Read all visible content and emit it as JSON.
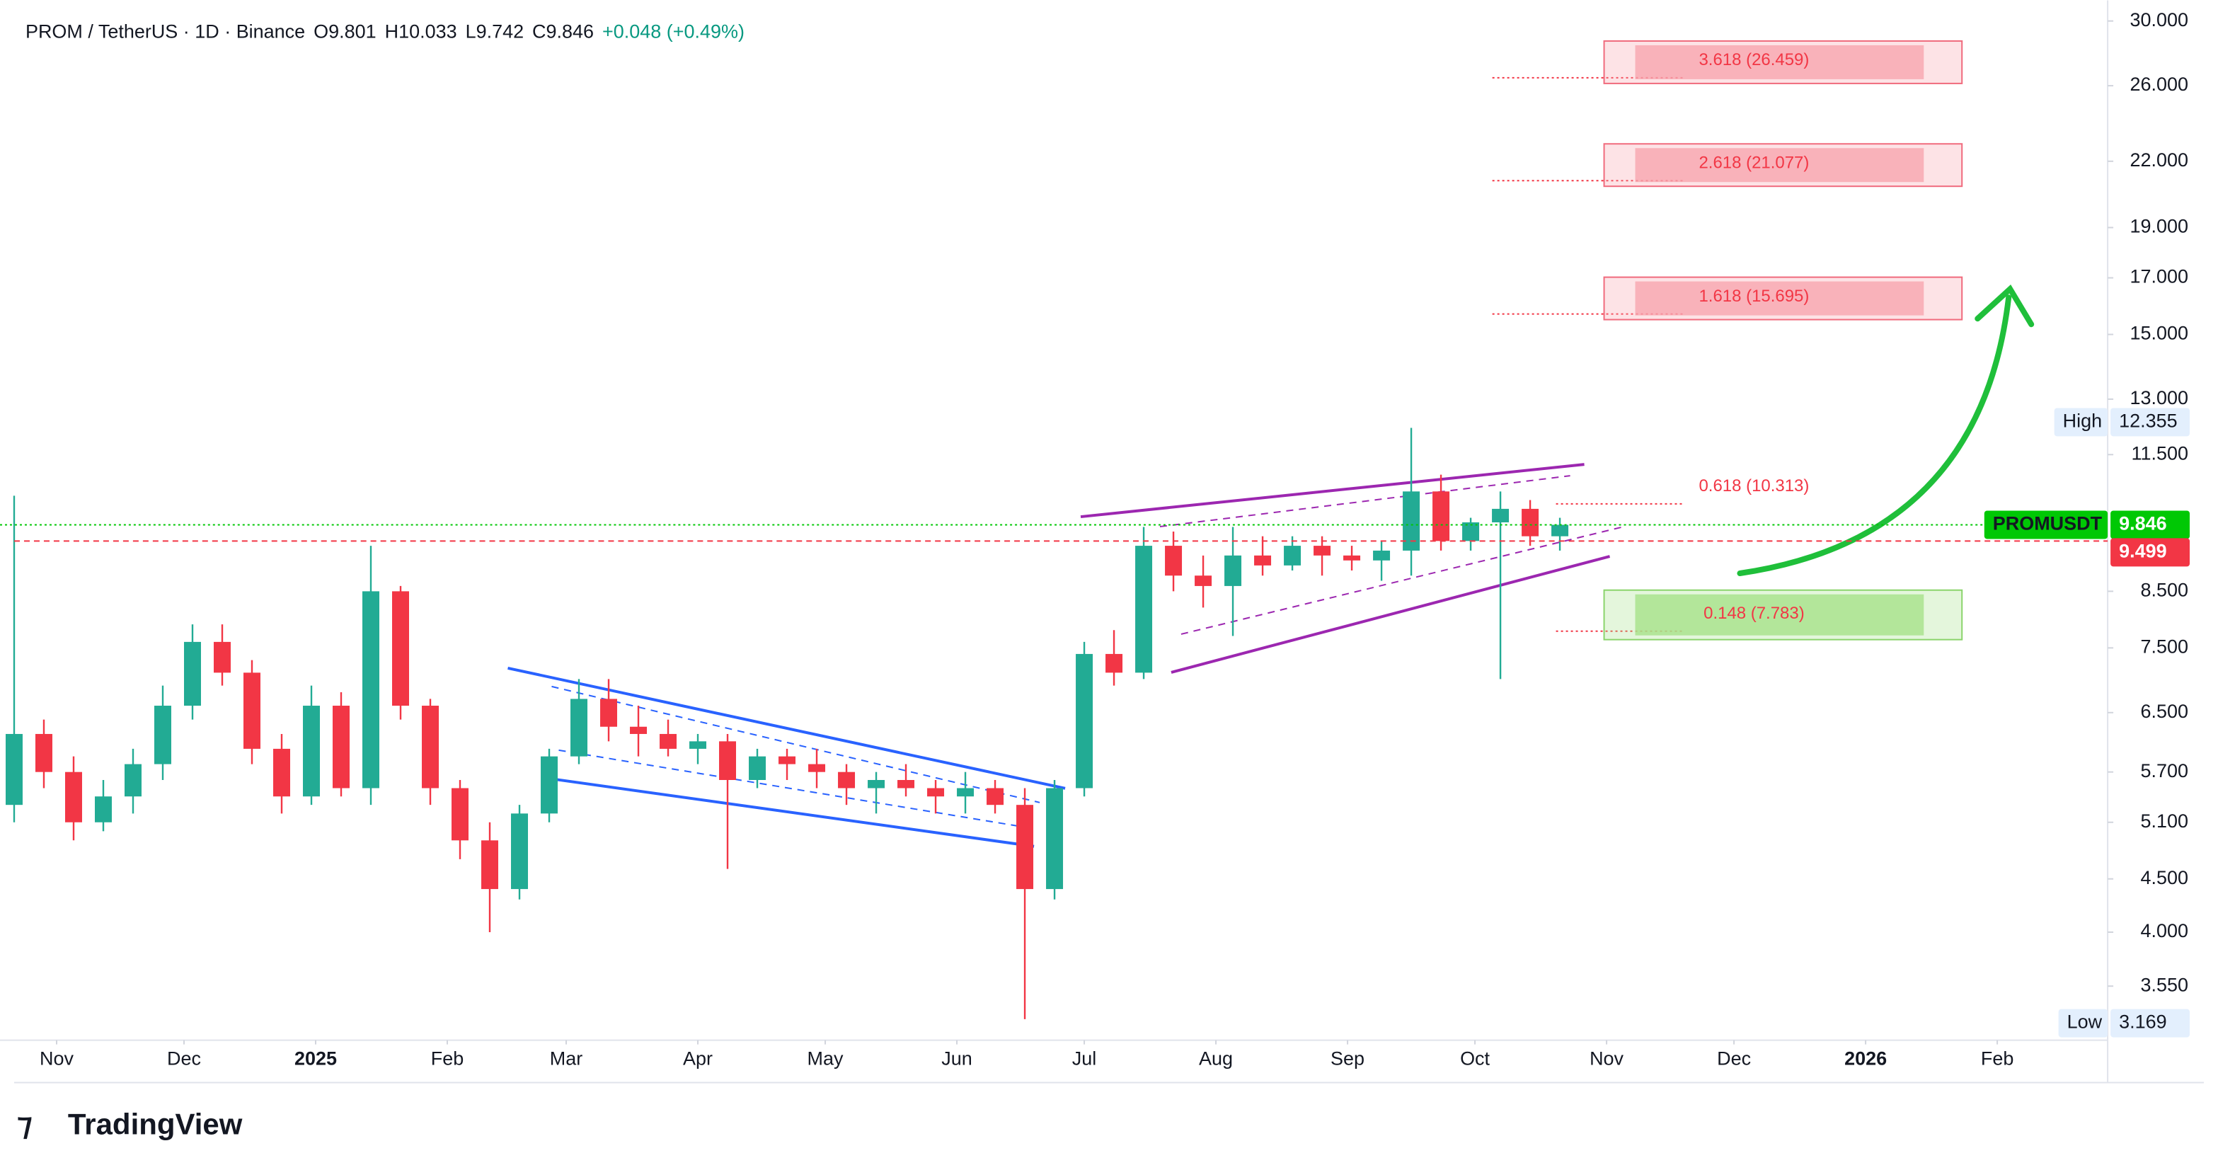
{
  "chart_data": {
    "type": "candlestick",
    "title": "PROM / TetherUS · 1D · Binance",
    "header_values": [
      {
        "value": 9.801,
        "label": "O9.801"
      },
      {
        "value": 10.033,
        "label": "H10.033"
      },
      {
        "value": 9.742,
        "label": "L9.742"
      },
      {
        "value": 9.846,
        "label": "C9.846"
      },
      {
        "value": 0.048,
        "label": "+0.048 (+0.49%)"
      }
    ],
    "x": [
      -10,
      -3,
      4,
      11,
      18,
      25,
      32,
      39,
      46,
      53,
      60,
      67,
      74,
      81,
      88,
      95,
      102,
      109,
      116,
      123,
      130,
      137,
      144,
      151,
      158,
      165,
      172,
      179,
      186,
      193,
      200,
      207,
      214,
      221,
      228,
      235,
      242,
      249,
      256,
      263,
      270,
      277,
      284,
      291,
      298,
      305,
      312,
      319,
      326,
      333,
      340,
      347,
      354
    ],
    "ohlc": [
      [
        5.3,
        10.5,
        5.1,
        6.2
      ],
      [
        6.2,
        6.4,
        5.5,
        5.7
      ],
      [
        5.7,
        5.9,
        4.9,
        5.1
      ],
      [
        5.1,
        5.6,
        5.0,
        5.4
      ],
      [
        5.4,
        6.0,
        5.2,
        5.8
      ],
      [
        5.8,
        6.9,
        5.6,
        6.6
      ],
      [
        6.6,
        7.9,
        6.4,
        7.6
      ],
      [
        7.6,
        7.9,
        6.9,
        7.1
      ],
      [
        7.1,
        7.3,
        5.8,
        6.0
      ],
      [
        6.0,
        6.2,
        5.2,
        5.4
      ],
      [
        5.4,
        6.9,
        5.3,
        6.6
      ],
      [
        6.6,
        6.8,
        5.4,
        5.5
      ],
      [
        5.5,
        9.4,
        5.3,
        8.5
      ],
      [
        8.5,
        8.6,
        6.4,
        6.6
      ],
      [
        6.6,
        6.7,
        5.3,
        5.5
      ],
      [
        5.5,
        5.6,
        4.7,
        4.9
      ],
      [
        4.9,
        5.1,
        4.0,
        4.4
      ],
      [
        4.4,
        5.3,
        4.3,
        5.2
      ],
      [
        5.2,
        6.0,
        5.1,
        5.9
      ],
      [
        5.9,
        7.0,
        5.8,
        6.7
      ],
      [
        6.7,
        7.0,
        6.1,
        6.3
      ],
      [
        6.3,
        6.6,
        5.9,
        6.2
      ],
      [
        6.2,
        6.4,
        5.9,
        6.0
      ],
      [
        6.0,
        6.2,
        5.8,
        6.1
      ],
      [
        6.1,
        6.2,
        4.6,
        5.6
      ],
      [
        5.6,
        6.0,
        5.5,
        5.9
      ],
      [
        5.9,
        6.0,
        5.6,
        5.8
      ],
      [
        5.8,
        6.0,
        5.5,
        5.7
      ],
      [
        5.7,
        5.8,
        5.3,
        5.5
      ],
      [
        5.5,
        5.7,
        5.2,
        5.6
      ],
      [
        5.6,
        5.8,
        5.4,
        5.5
      ],
      [
        5.5,
        5.6,
        5.2,
        5.4
      ],
      [
        5.4,
        5.7,
        5.2,
        5.5
      ],
      [
        5.5,
        5.6,
        5.2,
        5.3
      ],
      [
        5.3,
        5.5,
        3.3,
        4.4
      ],
      [
        4.4,
        5.6,
        4.3,
        5.5
      ],
      [
        5.5,
        7.6,
        5.4,
        7.4
      ],
      [
        7.4,
        7.8,
        6.9,
        7.1
      ],
      [
        7.1,
        9.8,
        7.0,
        9.4
      ],
      [
        9.4,
        9.7,
        8.5,
        8.8
      ],
      [
        8.8,
        9.2,
        8.2,
        8.6
      ],
      [
        8.6,
        9.8,
        7.7,
        9.2
      ],
      [
        9.2,
        9.6,
        8.8,
        9.0
      ],
      [
        9.0,
        9.6,
        8.9,
        9.4
      ],
      [
        9.4,
        9.6,
        8.8,
        9.2
      ],
      [
        9.2,
        9.4,
        8.9,
        9.1
      ],
      [
        9.1,
        9.5,
        8.7,
        9.3
      ],
      [
        9.3,
        12.2,
        8.8,
        10.6
      ],
      [
        10.6,
        11.0,
        9.3,
        9.5
      ],
      [
        9.5,
        10.0,
        9.3,
        9.9
      ],
      [
        9.9,
        10.6,
        7.0,
        10.2
      ],
      [
        10.2,
        10.4,
        9.4,
        9.6
      ],
      [
        9.6,
        10.0,
        9.3,
        9.846
      ]
    ],
    "up_color": "#22ab94",
    "down_color": "#f23645",
    "log_scale": true,
    "ylim": [
      3.15,
      31.4
    ],
    "yticks": [
      {
        "value": 30,
        "label": "30.000"
      },
      {
        "value": 26,
        "label": "26.000"
      },
      {
        "value": 22,
        "label": "22.000"
      },
      {
        "value": 19,
        "label": "19.000"
      },
      {
        "value": 17,
        "label": "17.000"
      },
      {
        "value": 15,
        "label": "15.000"
      },
      {
        "value": 13,
        "label": "13.000"
      },
      {
        "value": 11.5,
        "label": "11.500"
      },
      {
        "value": 8.5,
        "label": "8.500"
      },
      {
        "value": 7.5,
        "label": "7.500"
      },
      {
        "value": 6.5,
        "label": "6.500"
      },
      {
        "value": 5.7,
        "label": "5.700"
      },
      {
        "value": 5.1,
        "label": "5.100"
      },
      {
        "value": 4.5,
        "label": "4.500"
      },
      {
        "value": 4,
        "label": "4.000"
      },
      {
        "value": 3.55,
        "label": "3.550"
      }
    ],
    "xlim": [
      -10,
      483
    ],
    "xticks": [
      {
        "value": 0,
        "label": "Nov"
      },
      {
        "value": 30,
        "label": "Dec"
      },
      {
        "value": 61,
        "label": "2025"
      },
      {
        "value": 92,
        "label": "Feb"
      },
      {
        "value": 120,
        "label": "Mar"
      },
      {
        "value": 151,
        "label": "Apr"
      },
      {
        "value": 181,
        "label": "May"
      },
      {
        "value": 212,
        "label": "Jun"
      },
      {
        "value": 242,
        "label": "Jul"
      },
      {
        "value": 273,
        "label": "Aug"
      },
      {
        "value": 304,
        "label": "Sep"
      },
      {
        "value": 334,
        "label": "Oct"
      },
      {
        "value": 365,
        "label": "Nov"
      },
      {
        "value": 395,
        "label": "Dec"
      },
      {
        "value": 426,
        "label": "2026"
      },
      {
        "value": 457,
        "label": "Feb"
      }
    ],
    "grid": false,
    "fib_levels": [
      {
        "value": 26.459,
        "label": "3.618 (26.459)",
        "color": "#f7a1ab"
      },
      {
        "value": 21.077,
        "label": "2.618 (21.077)",
        "color": "#f7a1ab"
      },
      {
        "value": 15.695,
        "label": "1.618 (15.695)",
        "color": "#f7a1ab"
      },
      {
        "value": 10.313,
        "label": "0.618 (10.313)"
      },
      {
        "value": 7.783,
        "label": "0.148 (7.783)",
        "color": "#a6e28a"
      }
    ],
    "price_labels": [
      {
        "name": "High",
        "value": 12.355,
        "label": "12.355",
        "color": "#e3effd"
      },
      {
        "name": "PROMUSDT",
        "value": 9.846,
        "label": "9.846",
        "color": "#00c805"
      },
      {
        "value": 9.499,
        "label": "9.499",
        "color": "#f23645"
      },
      {
        "name": "Low",
        "value": 3.169,
        "label": "3.169",
        "color": "#e3effd"
      }
    ],
    "brand": "TradingView"
  }
}
